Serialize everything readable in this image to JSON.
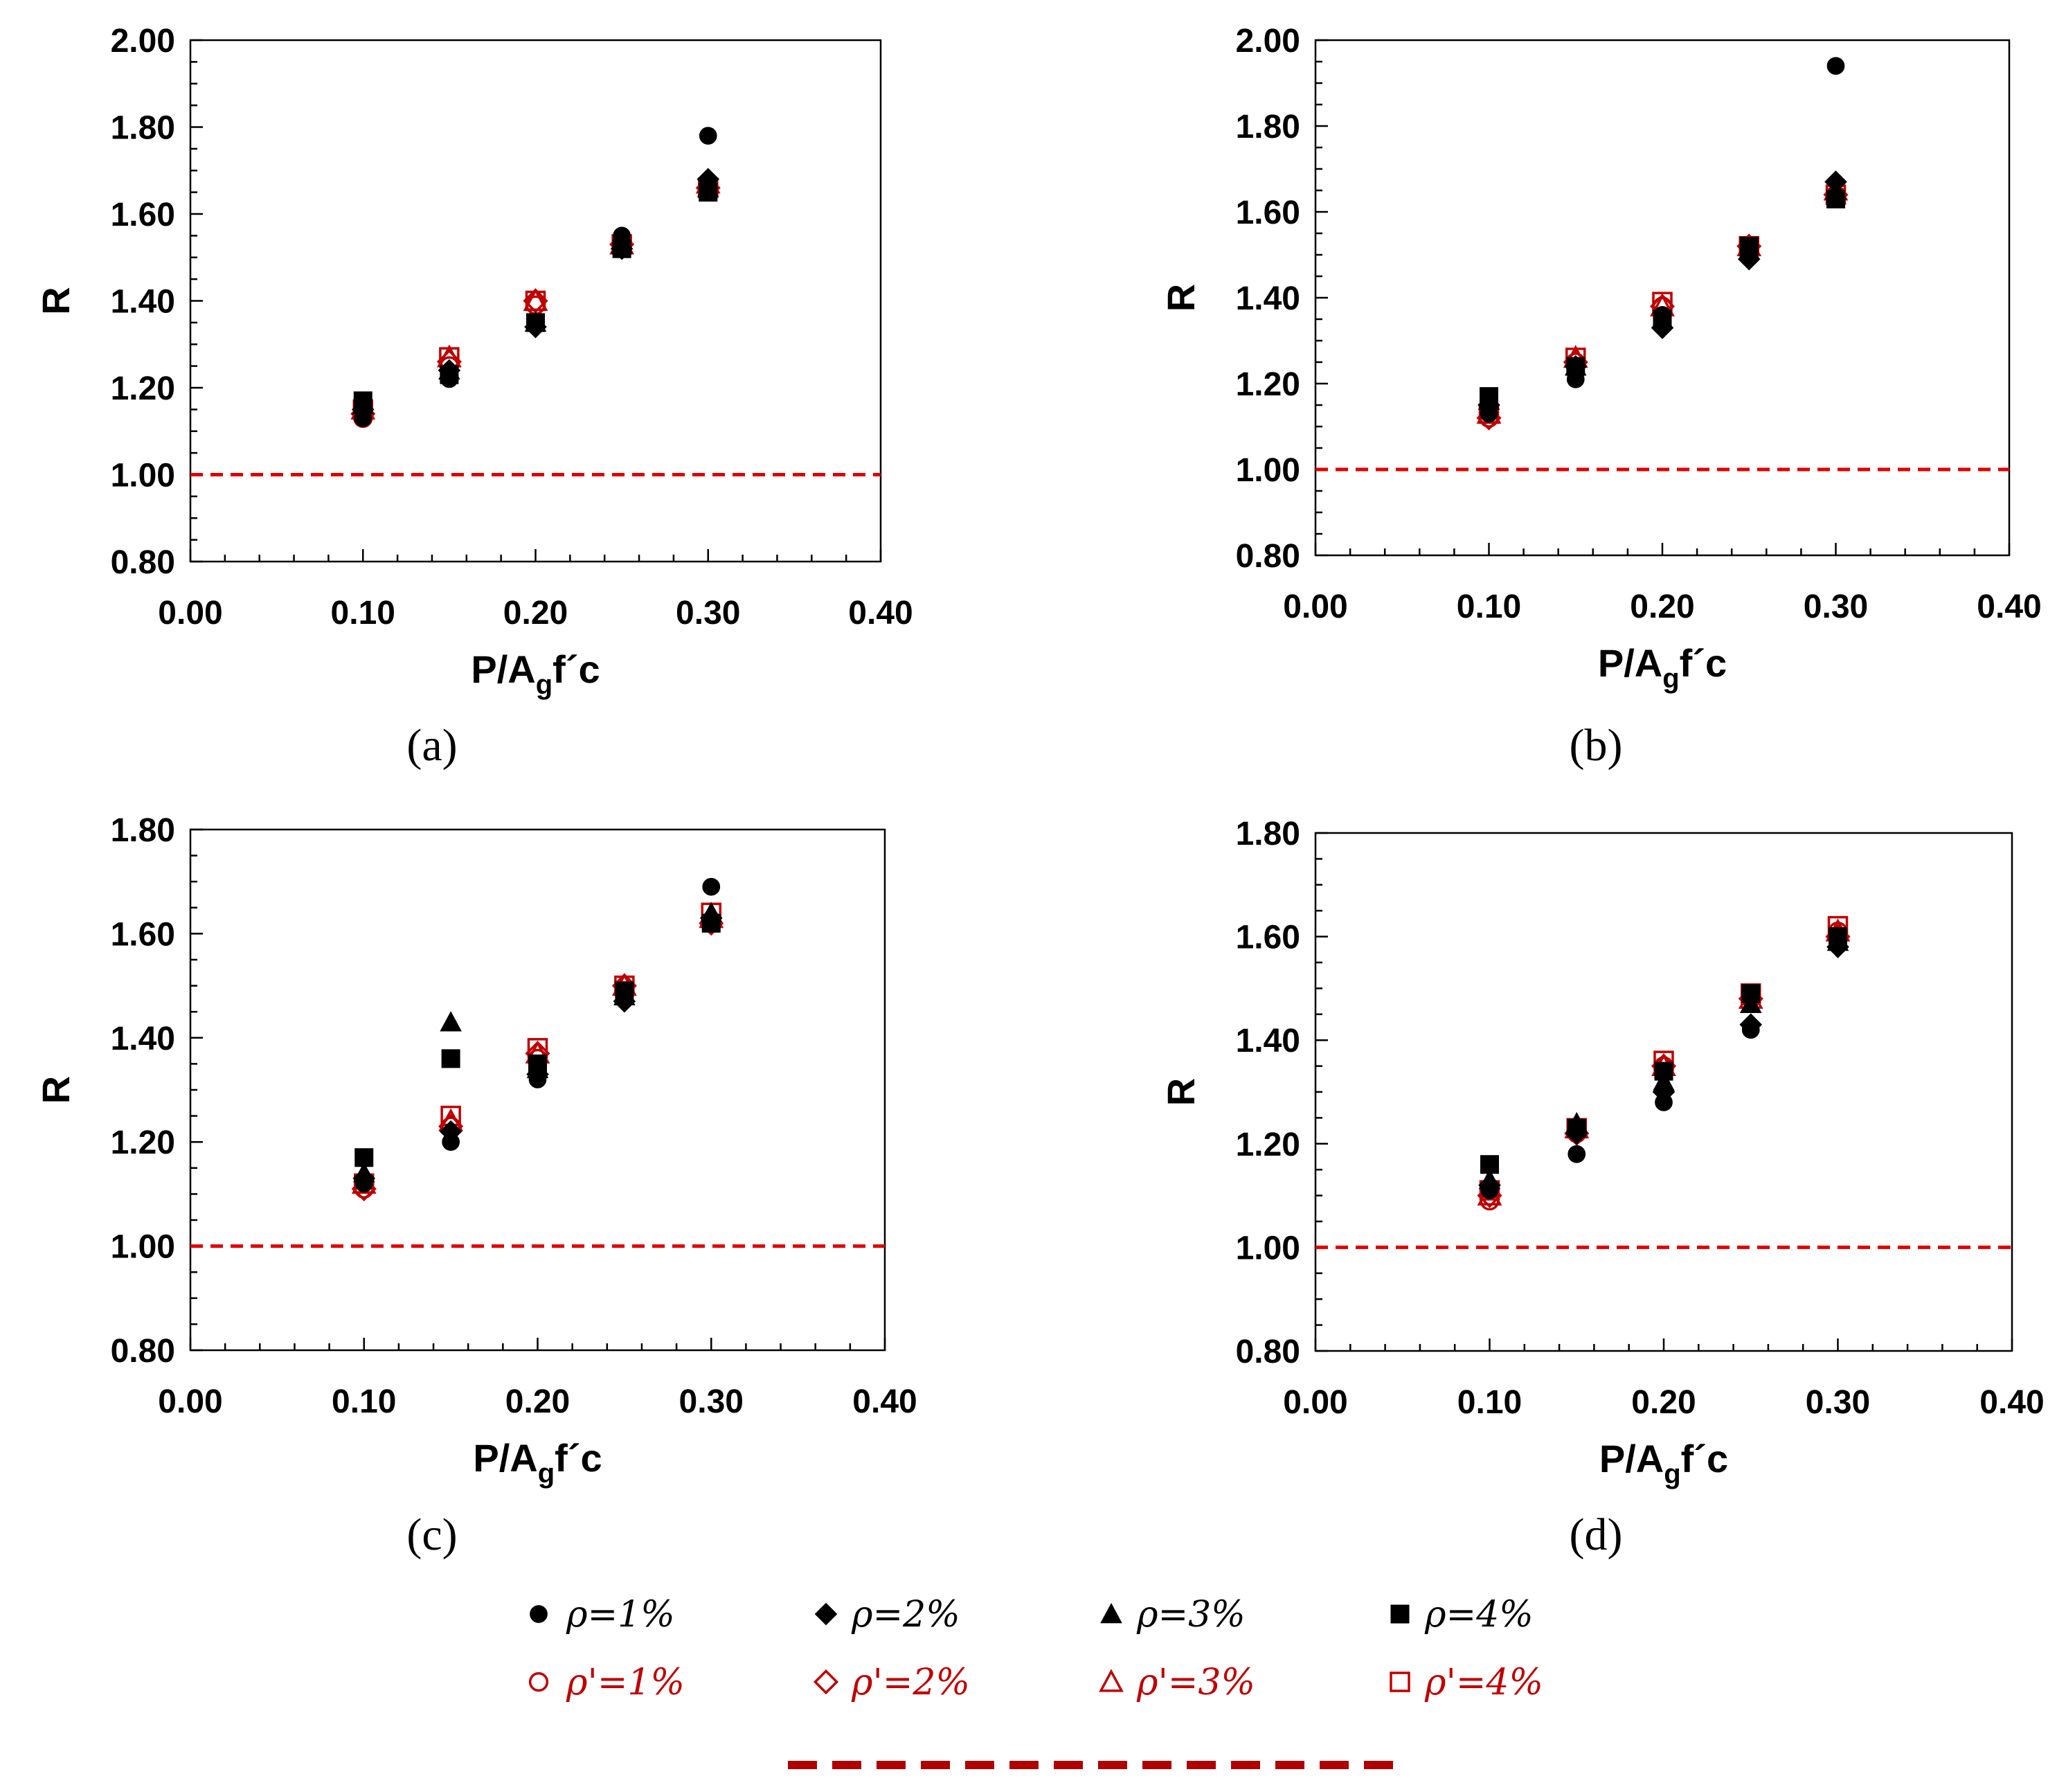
{
  "chart_data": [
    {
      "type": "scatter",
      "label": "(a)",
      "xlabel": "P/A_g f´c",
      "xlabel_main": "P/A",
      "xlabel_sub": "g",
      "xlabel_tail": "f´c",
      "ylabel": "R",
      "xlim": [
        0.0,
        0.4
      ],
      "ylim": [
        0.8,
        2.0
      ],
      "xticks": [
        "0.00",
        "0.10",
        "0.20",
        "0.30",
        "0.40"
      ],
      "yticks": [
        "0.80",
        "1.00",
        "1.20",
        "1.40",
        "1.60",
        "1.80",
        "2.00"
      ],
      "reference_line": 1.0,
      "x": [
        0.1,
        0.15,
        0.2,
        0.25,
        0.3
      ],
      "series": [
        {
          "name": "ρ=1%",
          "marker": "circle",
          "filled": true,
          "values": [
            1.13,
            1.22,
            1.35,
            1.55,
            1.78
          ]
        },
        {
          "name": "ρ=2%",
          "marker": "diamond",
          "filled": true,
          "values": [
            1.15,
            1.24,
            1.34,
            1.52,
            1.68
          ]
        },
        {
          "name": "ρ=3%",
          "marker": "triangle",
          "filled": true,
          "values": [
            1.16,
            1.24,
            1.35,
            1.53,
            1.66
          ]
        },
        {
          "name": "ρ=4%",
          "marker": "square",
          "filled": true,
          "values": [
            1.17,
            1.23,
            1.35,
            1.52,
            1.65
          ]
        },
        {
          "name": "ρ'=1%",
          "marker": "circle",
          "filled": false,
          "values": [
            1.13,
            1.25,
            1.39,
            1.53,
            1.66
          ]
        },
        {
          "name": "ρ'=2%",
          "marker": "diamond",
          "filled": false,
          "values": [
            1.14,
            1.26,
            1.4,
            1.53,
            1.66
          ]
        },
        {
          "name": "ρ'=3%",
          "marker": "triangle",
          "filled": false,
          "values": [
            1.15,
            1.27,
            1.4,
            1.53,
            1.67
          ]
        },
        {
          "name": "ρ'=4%",
          "marker": "square",
          "filled": false,
          "values": [
            1.15,
            1.27,
            1.4,
            1.53,
            1.66
          ]
        }
      ]
    },
    {
      "type": "scatter",
      "label": "(b)",
      "xlabel": "P/A_g f´c",
      "xlabel_main": "P/A",
      "xlabel_sub": "g",
      "xlabel_tail": "f´c",
      "ylabel": "R",
      "xlim": [
        0.0,
        0.4
      ],
      "ylim": [
        0.8,
        2.0
      ],
      "xticks": [
        "0.00",
        "0.10",
        "0.20",
        "0.30",
        "0.40"
      ],
      "yticks": [
        "0.80",
        "1.00",
        "1.20",
        "1.40",
        "1.60",
        "1.80",
        "2.00"
      ],
      "reference_line": 1.0,
      "x": [
        0.1,
        0.15,
        0.2,
        0.25,
        0.3
      ],
      "series": [
        {
          "name": "ρ=1%",
          "marker": "circle",
          "filled": true,
          "values": [
            1.13,
            1.21,
            1.36,
            1.51,
            1.94
          ]
        },
        {
          "name": "ρ=2%",
          "marker": "diamond",
          "filled": true,
          "values": [
            1.15,
            1.24,
            1.33,
            1.49,
            1.67
          ]
        },
        {
          "name": "ρ=3%",
          "marker": "triangle",
          "filled": true,
          "values": [
            1.16,
            1.24,
            1.35,
            1.51,
            1.65
          ]
        },
        {
          "name": "ρ=4%",
          "marker": "square",
          "filled": true,
          "values": [
            1.17,
            1.24,
            1.35,
            1.52,
            1.63
          ]
        },
        {
          "name": "ρ'=1%",
          "marker": "circle",
          "filled": false,
          "values": [
            1.12,
            1.25,
            1.38,
            1.52,
            1.64
          ]
        },
        {
          "name": "ρ'=2%",
          "marker": "diamond",
          "filled": false,
          "values": [
            1.12,
            1.25,
            1.38,
            1.52,
            1.64
          ]
        },
        {
          "name": "ρ'=3%",
          "marker": "triangle",
          "filled": false,
          "values": [
            1.13,
            1.26,
            1.38,
            1.52,
            1.65
          ]
        },
        {
          "name": "ρ'=4%",
          "marker": "square",
          "filled": false,
          "values": [
            1.13,
            1.26,
            1.39,
            1.52,
            1.64
          ]
        }
      ]
    },
    {
      "type": "scatter",
      "label": "(c)",
      "xlabel": "P/A_g f´c",
      "xlabel_main": "P/A",
      "xlabel_sub": "g",
      "xlabel_tail": "f´c",
      "ylabel": "R",
      "xlim": [
        0.0,
        0.4
      ],
      "ylim": [
        0.8,
        1.8
      ],
      "xticks": [
        "0.00",
        "0.10",
        "0.20",
        "0.30",
        "0.40"
      ],
      "yticks": [
        "0.80",
        "1.00",
        "1.20",
        "1.40",
        "1.60",
        "1.80"
      ],
      "reference_line": 1.0,
      "x": [
        0.1,
        0.15,
        0.2,
        0.25,
        0.3
      ],
      "series": [
        {
          "name": "ρ=1%",
          "marker": "circle",
          "filled": true,
          "values": [
            1.12,
            1.2,
            1.32,
            1.48,
            1.69
          ]
        },
        {
          "name": "ρ=2%",
          "marker": "diamond",
          "filled": true,
          "values": [
            1.13,
            1.22,
            1.33,
            1.47,
            1.63
          ]
        },
        {
          "name": "ρ=3%",
          "marker": "triangle",
          "filled": true,
          "values": [
            1.14,
            1.43,
            1.34,
            1.48,
            1.64
          ]
        },
        {
          "name": "ρ=4%",
          "marker": "square",
          "filled": true,
          "values": [
            1.17,
            1.36,
            1.35,
            1.49,
            1.62
          ]
        },
        {
          "name": "ρ'=1%",
          "marker": "circle",
          "filled": false,
          "values": [
            1.11,
            1.23,
            1.36,
            1.49,
            1.62
          ]
        },
        {
          "name": "ρ'=2%",
          "marker": "diamond",
          "filled": false,
          "values": [
            1.11,
            1.23,
            1.37,
            1.5,
            1.62
          ]
        },
        {
          "name": "ρ'=3%",
          "marker": "triangle",
          "filled": false,
          "values": [
            1.12,
            1.24,
            1.37,
            1.5,
            1.63
          ]
        },
        {
          "name": "ρ'=4%",
          "marker": "square",
          "filled": false,
          "values": [
            1.12,
            1.25,
            1.38,
            1.5,
            1.64
          ]
        }
      ]
    },
    {
      "type": "scatter",
      "label": "(d)",
      "xlabel": "P/A_g f´c",
      "xlabel_main": "P/A",
      "xlabel_sub": "g",
      "xlabel_tail": "f´c",
      "ylabel": "R",
      "xlim": [
        0.0,
        0.4
      ],
      "ylim": [
        0.8,
        1.8
      ],
      "xticks": [
        "0.00",
        "0.10",
        "0.20",
        "0.30",
        "0.40"
      ],
      "yticks": [
        "0.80",
        "1.00",
        "1.20",
        "1.40",
        "1.60",
        "1.80"
      ],
      "reference_line": 1.0,
      "x": [
        0.1,
        0.15,
        0.2,
        0.25,
        0.3
      ],
      "series": [
        {
          "name": "ρ=1%",
          "marker": "circle",
          "filled": true,
          "values": [
            1.11,
            1.18,
            1.28,
            1.42,
            1.59
          ]
        },
        {
          "name": "ρ=2%",
          "marker": "diamond",
          "filled": true,
          "values": [
            1.12,
            1.22,
            1.3,
            1.43,
            1.58
          ]
        },
        {
          "name": "ρ=3%",
          "marker": "triangle",
          "filled": true,
          "values": [
            1.13,
            1.24,
            1.32,
            1.47,
            1.59
          ]
        },
        {
          "name": "ρ=4%",
          "marker": "square",
          "filled": true,
          "values": [
            1.16,
            1.23,
            1.34,
            1.49,
            1.6
          ]
        },
        {
          "name": "ρ'=1%",
          "marker": "circle",
          "filled": false,
          "values": [
            1.09,
            1.22,
            1.35,
            1.48,
            1.61
          ]
        },
        {
          "name": "ρ'=2%",
          "marker": "diamond",
          "filled": false,
          "values": [
            1.1,
            1.22,
            1.35,
            1.48,
            1.6
          ]
        },
        {
          "name": "ρ'=3%",
          "marker": "triangle",
          "filled": false,
          "values": [
            1.1,
            1.23,
            1.35,
            1.48,
            1.61
          ]
        },
        {
          "name": "ρ'=4%",
          "marker": "square",
          "filled": false,
          "values": [
            1.11,
            1.23,
            1.36,
            1.49,
            1.62
          ]
        }
      ]
    }
  ],
  "legend": {
    "items": [
      {
        "text": "ρ=1%",
        "marker": "circle",
        "filled": true
      },
      {
        "text": "ρ=2%",
        "marker": "diamond",
        "filled": true
      },
      {
        "text": "ρ=3%",
        "marker": "triangle",
        "filled": true
      },
      {
        "text": "ρ=4%",
        "marker": "square",
        "filled": true
      },
      {
        "text": "ρ'=1%",
        "marker": "circle",
        "filled": false
      },
      {
        "text": "ρ'=2%",
        "marker": "diamond",
        "filled": false
      },
      {
        "text": "ρ'=3%",
        "marker": "triangle",
        "filled": false
      },
      {
        "text": "ρ'=4%",
        "marker": "square",
        "filled": false
      }
    ]
  },
  "colors": {
    "filled_marker": "#000000",
    "open_marker": "#c00000",
    "reference_line": "#e00000",
    "legend_line": "#b00000",
    "axis": "#000000"
  }
}
